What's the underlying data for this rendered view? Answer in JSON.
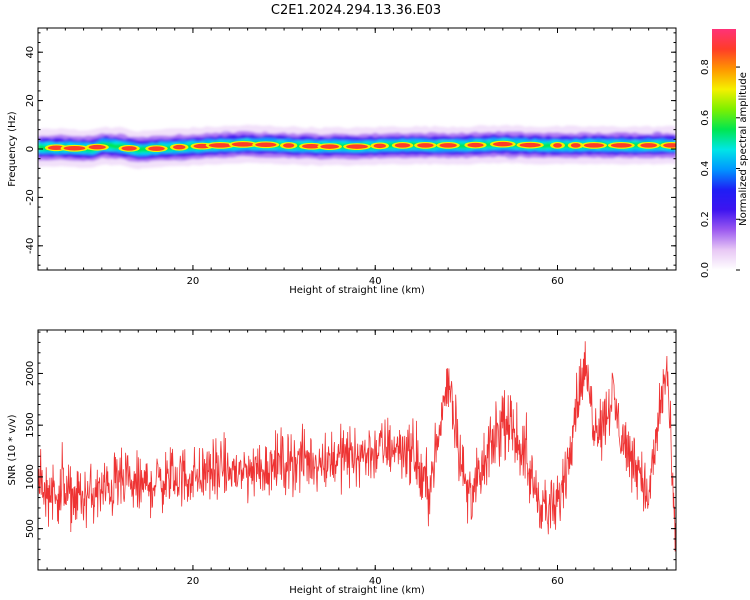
{
  "colors": {
    "snr_line": "#ee3333",
    "background": "#ffffff",
    "axes": "#000000"
  },
  "chart_data": [
    {
      "type": "heatmap",
      "title": "C2E1.2024.294.13.36.E03",
      "xlabel": "Height of straight line (km)",
      "ylabel": "Frequency (Hz)",
      "xlim": [
        3,
        73
      ],
      "ylim": [
        -50,
        50
      ],
      "xticks": [
        20,
        40,
        60
      ],
      "yticks": [
        -40,
        -20,
        0,
        20,
        40
      ],
      "xtick_labels": [
        "20",
        "40",
        "60"
      ],
      "ytick_labels": [
        "-40",
        "-20",
        "0",
        "20",
        "40"
      ],
      "band": {
        "center_hz": [
          0.5,
          0.5,
          0.0,
          1.5,
          1.0,
          -0.5,
          0.5,
          1.0,
          1.5,
          2.0,
          1.5,
          1.0,
          1.0,
          1.5,
          1.5,
          1.5,
          2.0,
          1.5,
          1.5,
          1.5,
          1.5,
          1.5
        ],
        "center_x_km": [
          4,
          6,
          9,
          10,
          12,
          14,
          17,
          20,
          23,
          26,
          30,
          34,
          38,
          42,
          46,
          50,
          54,
          58,
          62,
          66,
          70,
          73
        ],
        "half_width_hz": 3,
        "hot_spot_x_km": [
          5,
          7,
          9.5,
          13,
          16,
          18.5,
          21,
          23,
          25.5,
          28,
          30.5,
          33,
          35,
          38,
          40.5,
          43,
          45.5,
          48,
          51,
          54,
          57,
          60,
          62,
          64,
          67,
          70,
          72.5
        ]
      },
      "colorbar": {
        "label": "Normalized spectral amplitude",
        "range": [
          0.0,
          0.95
        ],
        "ticks": [
          0.0,
          0.2,
          0.4,
          0.6,
          0.8
        ],
        "tick_labels": [
          "0.0",
          "0.2",
          "0.4",
          "0.6",
          "0.8"
        ],
        "colormap": [
          "#ffffff",
          "#e8c8f5",
          "#9b59f0",
          "#3d14f0",
          "#1e1ef5",
          "#0096ff",
          "#00e6e6",
          "#00e650",
          "#7ef000",
          "#f5f000",
          "#ff9600",
          "#ff3c28",
          "#ff3278"
        ]
      }
    },
    {
      "type": "line",
      "xlabel": "Height of straight line (km)",
      "ylabel": "SNR (10 * v/v)",
      "xlim": [
        3,
        73
      ],
      "ylim": [
        100,
        2420
      ],
      "xticks": [
        20,
        40,
        60
      ],
      "yticks": [
        500,
        1000,
        1500,
        2000
      ],
      "xtick_labels": [
        "20",
        "40",
        "60"
      ],
      "ytick_labels": [
        "500",
        "1000",
        "1500",
        "2000"
      ],
      "envelope": {
        "x": [
          3,
          5,
          8,
          10,
          12,
          14,
          16,
          18,
          20,
          22,
          24,
          26,
          28,
          30,
          32,
          34,
          36,
          38,
          40,
          42,
          44,
          45,
          46,
          47,
          48,
          49,
          50,
          51,
          52,
          53,
          54,
          55,
          56,
          57,
          58,
          59,
          60,
          61,
          62,
          63,
          64,
          65,
          66,
          67,
          68,
          69,
          70,
          71,
          72,
          73
        ],
        "y": [
          900,
          850,
          800,
          850,
          950,
          900,
          950,
          1000,
          1000,
          1050,
          1050,
          1050,
          1100,
          1150,
          1150,
          1150,
          1200,
          1200,
          1250,
          1300,
          1250,
          1000,
          900,
          1400,
          2000,
          1400,
          850,
          900,
          1100,
          1350,
          1500,
          1450,
          1300,
          1000,
          800,
          650,
          700,
          1100,
          1700,
          2050,
          1550,
          1500,
          1800,
          1400,
          1200,
          1100,
          750,
          1500,
          2100,
          150
        ]
      },
      "noise_amplitude": 220,
      "sample_count": 1400
    }
  ]
}
